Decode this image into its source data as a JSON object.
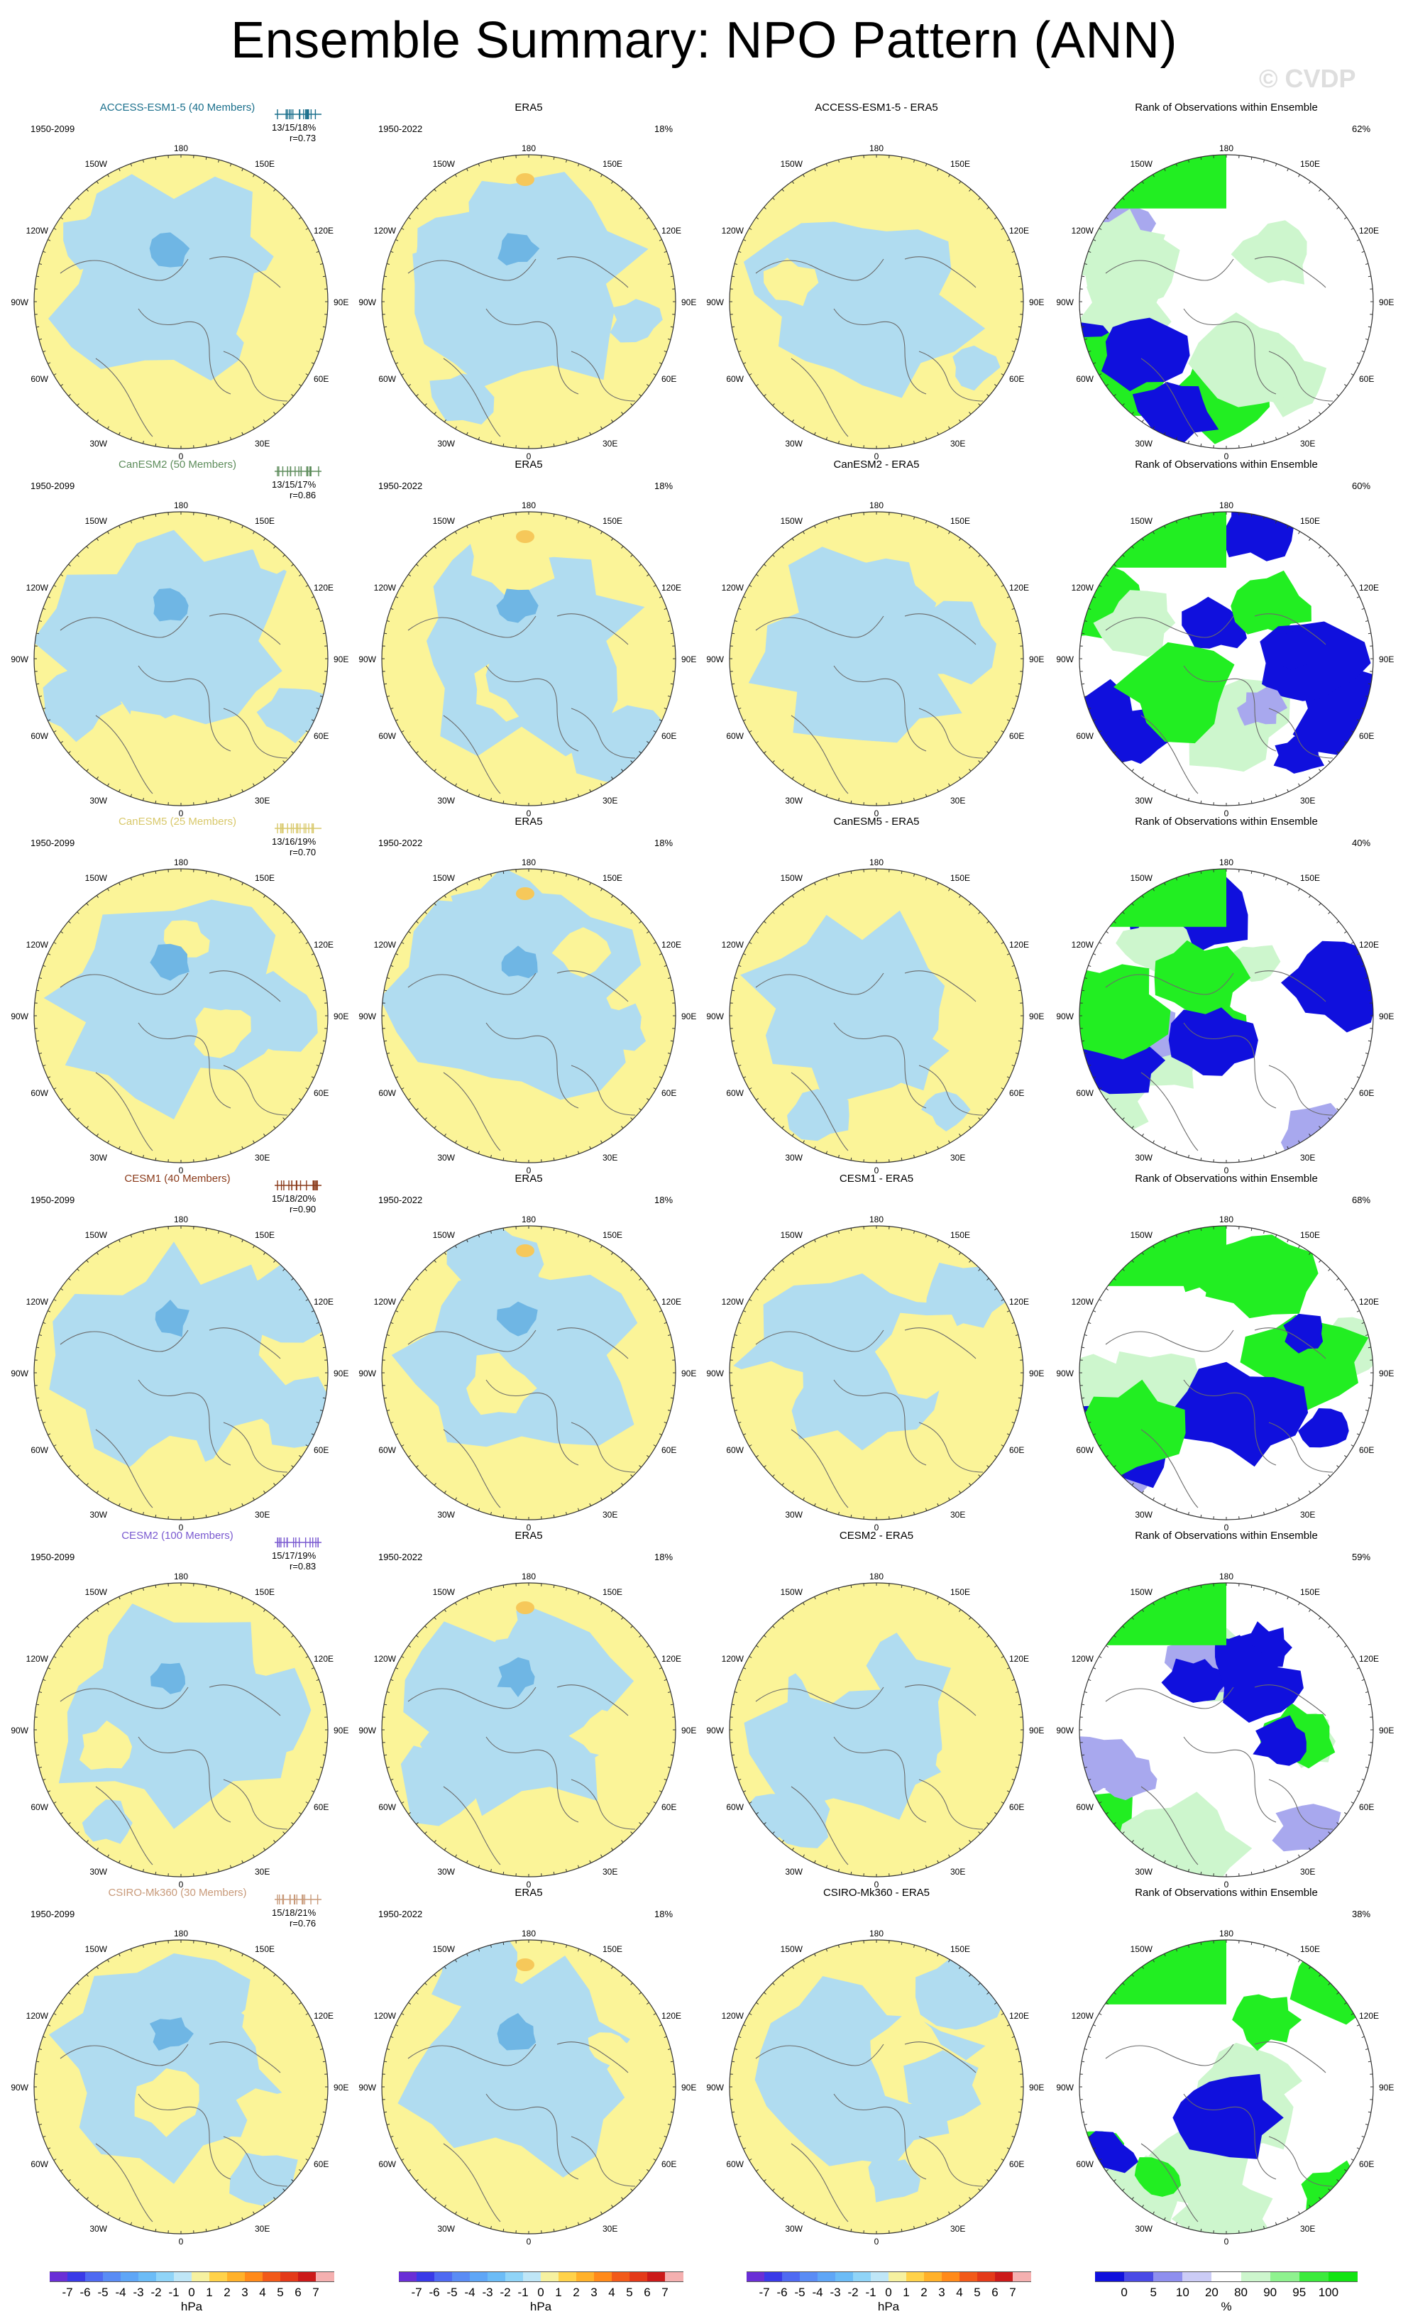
{
  "title": "Ensemble Summary: NPO Pattern (ANN)",
  "watermark": "© CVDP",
  "colors": {
    "positive": "#fbf498",
    "negative": "#b0dcf0",
    "negative_strong": "#6fb6e4",
    "rank_high": "#22ee22",
    "rank_low": "#1010dd",
    "rank_mid_low": "#a8a8ee",
    "rank_mid_high": "#cdf6cd",
    "coast": "#6a6a6a"
  },
  "map_labels": {
    "top": "180",
    "bottom": "0",
    "left": "90W",
    "right": "90E",
    "nw": "150W",
    "ne": "150E",
    "wnw": "120W",
    "ene": "120E",
    "wsw": "60W",
    "ese": "60E",
    "sw": "30W",
    "se": "30E"
  },
  "era5": {
    "title": "ERA5",
    "period": "1950-2022",
    "pct": "18%"
  },
  "rank_title": "Rank of Observations within Ensemble",
  "rows": [
    {
      "model": "ACCESS-ESM1-5 (40 Members)",
      "model_color": "#1a6f8c",
      "period": "1950-2099",
      "stats": "13/15/18%",
      "r": "r=0.73",
      "diff_title": "ACCESS-ESM1-5 - ERA5",
      "rank_pct": "62%"
    },
    {
      "model": "CanESM2 (50 Members)",
      "model_color": "#5d8c5b",
      "period": "1950-2099",
      "stats": "13/15/17%",
      "r": "r=0.86",
      "diff_title": "CanESM2 - ERA5",
      "rank_pct": "60%"
    },
    {
      "model": "CanESM5 (25 Members)",
      "model_color": "#d8c86a",
      "period": "1950-2099",
      "stats": "13/16/19%",
      "r": "r=0.70",
      "diff_title": "CanESM5 - ERA5",
      "rank_pct": "40%"
    },
    {
      "model": "CESM1 (40 Members)",
      "model_color": "#8a3a1a",
      "period": "1950-2099",
      "stats": "15/18/20%",
      "r": "r=0.90",
      "diff_title": "CESM1 - ERA5",
      "rank_pct": "68%"
    },
    {
      "model": "CESM2 (100 Members)",
      "model_color": "#7a5ad0",
      "period": "1950-2099",
      "stats": "15/17/19%",
      "r": "r=0.83",
      "diff_title": "CESM2 - ERA5",
      "rank_pct": "59%"
    },
    {
      "model": "CSIRO-Mk360 (30 Members)",
      "model_color": "#c89a7a",
      "period": "1950-2099",
      "stats": "15/18/21%",
      "r": "r=0.76",
      "diff_title": "CSIRO-Mk360 - ERA5",
      "rank_pct": "38%"
    }
  ],
  "colorbar_hpa": {
    "ticks": [
      "-7",
      "-6",
      "-5",
      "-4",
      "-3",
      "-2",
      "-1",
      "0",
      "1",
      "2",
      "3",
      "4",
      "5",
      "6",
      "7"
    ],
    "colors": [
      "#6a2fd6",
      "#3a3ae8",
      "#4f6af2",
      "#5a8cf5",
      "#5fa6f7",
      "#6cbcf7",
      "#90d4f8",
      "#bfe6f7",
      "#f6f1a0",
      "#ffd24a",
      "#ffb12a",
      "#ff8a1a",
      "#f25a1a",
      "#e43a1a",
      "#cc1a1a",
      "#f5b0b0"
    ],
    "unit": "hPa"
  },
  "colorbar_rank": {
    "ticks": [
      "0",
      "5",
      "10",
      "20",
      "80",
      "90",
      "95",
      "100"
    ],
    "colors": [
      "#1010dd",
      "#4a4ae6",
      "#8f8fef",
      "#ccccf6",
      "#ffffff",
      "#cdf6cd",
      "#8ff28f",
      "#3cea3c",
      "#12e412"
    ],
    "unit": "%"
  }
}
